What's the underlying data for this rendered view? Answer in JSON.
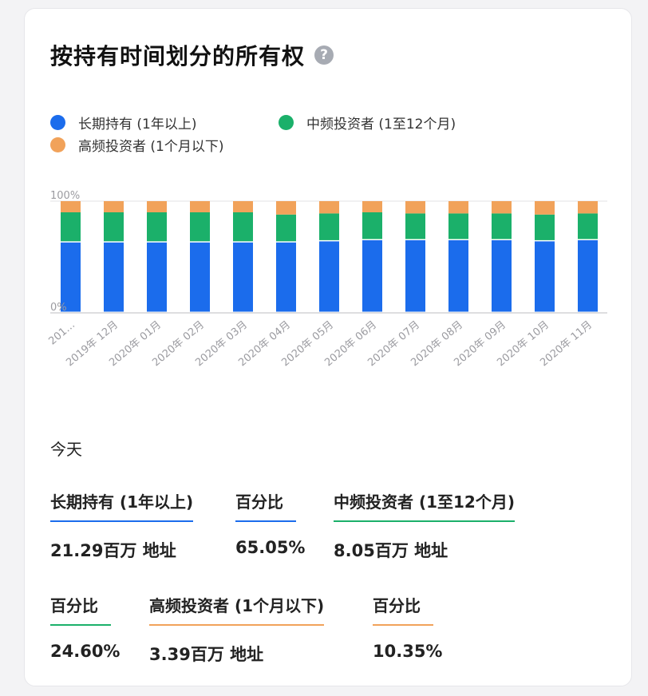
{
  "title": "按持有时间划分的所有权",
  "help_icon": "?",
  "colors": {
    "long": "#1b6cec",
    "mid": "#1bb06a",
    "high": "#f1a25a"
  },
  "legend": [
    {
      "label": "长期持有 (1年以上)",
      "color": "#1b6cec"
    },
    {
      "label": "中频投资者 (1至12个月)",
      "color": "#1bb06a"
    },
    {
      "label": "高频投资者 (1个月以下)",
      "color": "#f1a25a"
    }
  ],
  "chart_data": {
    "type": "bar",
    "stacked": true,
    "categories": [
      "201…",
      "2019年 12月",
      "2020年 01月",
      "2020年 02月",
      "2020年 03月",
      "2020年 04月",
      "2020年 05月",
      "2020年 06月",
      "2020年 07月",
      "2020年 08月",
      "2020年 09月",
      "2020年 10月",
      "2020年 11月"
    ],
    "series": [
      {
        "name": "长期持有 (1年以上)",
        "color": "#1b6cec",
        "values": [
          63,
          63,
          63,
          63,
          63,
          63,
          64,
          65,
          65,
          65,
          65,
          64,
          65
        ]
      },
      {
        "name": "中频投资者 (1至12个月)",
        "color": "#1bb06a",
        "values": [
          27,
          27,
          27,
          27,
          27,
          25,
          25,
          25,
          24,
          24,
          24,
          24,
          24
        ]
      },
      {
        "name": "高频投资者 (1个月以下)",
        "color": "#f1a25a",
        "values": [
          10,
          10,
          10,
          10,
          10,
          12,
          11,
          10,
          11,
          11,
          11,
          12,
          11
        ]
      }
    ],
    "y_tick_labels": [
      "100%",
      "0%"
    ],
    "ylim": [
      0,
      100
    ]
  },
  "today_label": "今天",
  "stats": [
    {
      "label": "长期持有 (1年以上)",
      "value": "21.29百万 地址",
      "color": "#1b6cec"
    },
    {
      "label": "百分比",
      "value": "65.05%",
      "color": "#1b6cec"
    },
    {
      "label": "中频投资者 (1至12个月)",
      "value": "8.05百万 地址",
      "color": "#1bb06a"
    },
    {
      "label": "百分比",
      "value": "24.60%",
      "color": "#1bb06a"
    },
    {
      "label": "高频投资者 (1个月以下)",
      "value": "3.39百万 地址",
      "color": "#f1a25a"
    },
    {
      "label": "百分比",
      "value": "10.35%",
      "color": "#f1a25a"
    }
  ]
}
